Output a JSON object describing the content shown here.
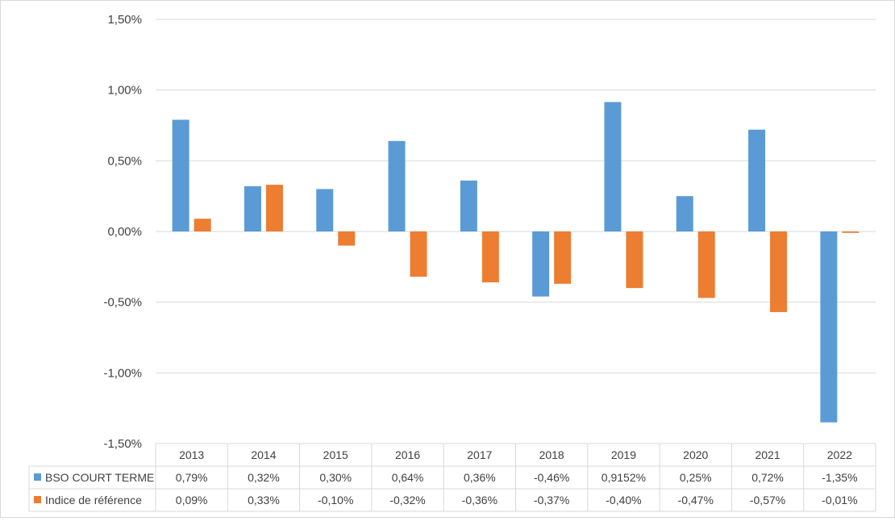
{
  "chart_data": {
    "type": "bar",
    "categories": [
      "2013",
      "2014",
      "2015",
      "2016",
      "2017",
      "2018",
      "2019",
      "2020",
      "2021",
      "2022"
    ],
    "series": [
      {
        "name": "BSO COURT TERME",
        "color": "#5b9bd5",
        "values": [
          0.79,
          0.32,
          0.3,
          0.64,
          0.36,
          -0.46,
          0.9152,
          0.25,
          0.72,
          -1.35
        ],
        "labels": [
          "0,79%",
          "0,32%",
          "0,30%",
          "0,64%",
          "0,36%",
          "-0,46%",
          "0,9152%",
          "0,25%",
          "0,72%",
          "-1,35%"
        ]
      },
      {
        "name": "Indice de référence",
        "color": "#ed7d31",
        "values": [
          0.09,
          0.33,
          -0.1,
          -0.32,
          -0.36,
          -0.37,
          -0.4,
          -0.47,
          -0.57,
          -0.01
        ],
        "labels": [
          "0,09%",
          "0,33%",
          "-0,10%",
          "-0,32%",
          "-0,36%",
          "-0,37%",
          "-0,40%",
          "-0,47%",
          "-0,57%",
          "-0,01%"
        ]
      }
    ],
    "ylim": [
      -1.5,
      1.5
    ],
    "y_ticks": [
      {
        "value": 1.5,
        "label": "1,50%"
      },
      {
        "value": 1.0,
        "label": "1,00%"
      },
      {
        "value": 0.5,
        "label": "0,50%"
      },
      {
        "value": 0.0,
        "label": "0,00%"
      },
      {
        "value": -0.5,
        "label": "-0,50%"
      },
      {
        "value": -1.0,
        "label": "-1,00%"
      },
      {
        "value": -1.5,
        "label": "-1,50%"
      }
    ],
    "grid": true,
    "legend": "data-table",
    "data_table": true
  }
}
